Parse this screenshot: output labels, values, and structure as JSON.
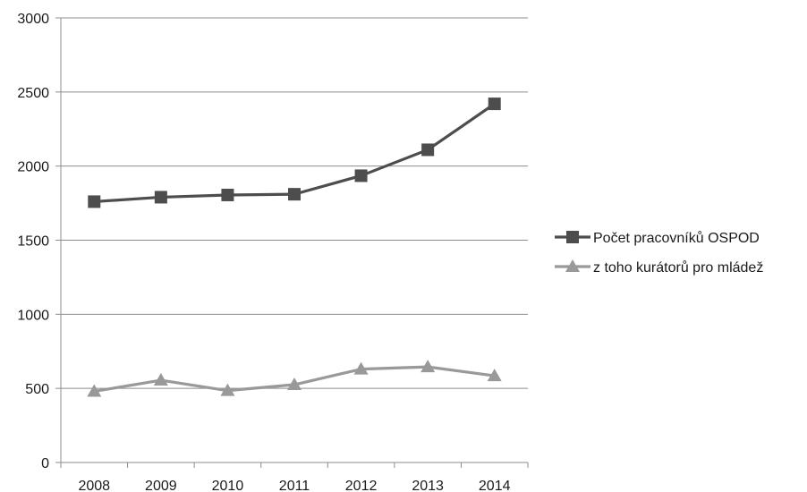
{
  "chart_data": {
    "type": "line",
    "categories": [
      "2008",
      "2009",
      "2010",
      "2011",
      "2012",
      "2013",
      "2014"
    ],
    "y_ticks": [
      "0",
      "500",
      "1000",
      "1500",
      "2000",
      "2500",
      "3000"
    ],
    "ylim": [
      0,
      3000
    ],
    "grid": true,
    "legend_position": "right",
    "series": [
      {
        "name": "Počet pracovníků OSPOD",
        "marker": "square",
        "color": "#4d4d4d",
        "values": [
          1760,
          1790,
          1805,
          1810,
          1935,
          2110,
          2420
        ]
      },
      {
        "name": "z toho kurátorů pro mládež",
        "marker": "triangle",
        "color": "#999999",
        "values": [
          480,
          555,
          485,
          525,
          630,
          645,
          585
        ]
      }
    ]
  }
}
